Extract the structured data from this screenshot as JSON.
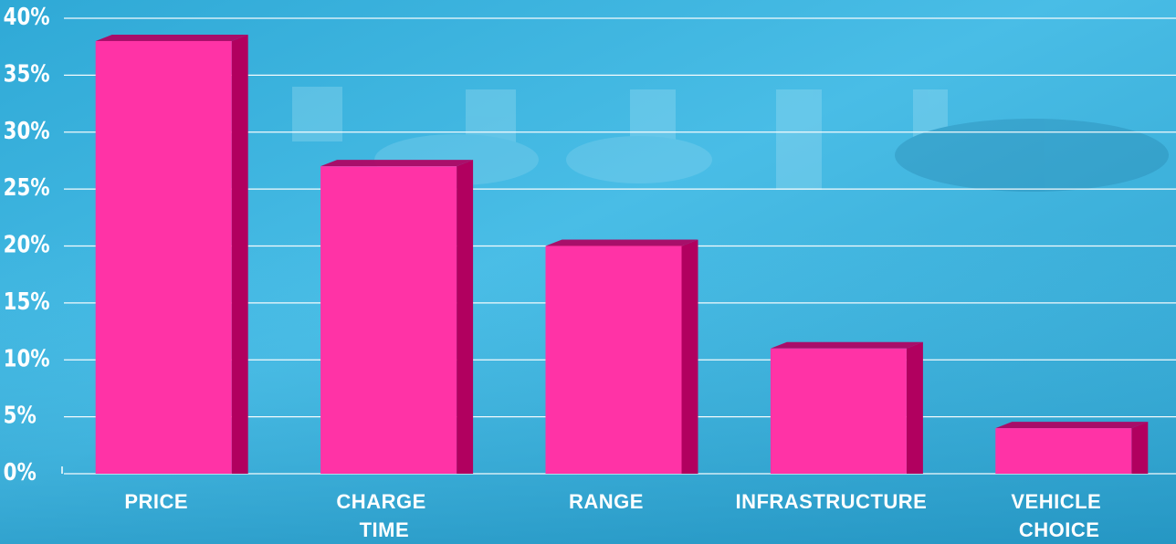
{
  "chart_data": {
    "type": "bar3d",
    "categories": [
      "PRICE",
      "CHARGE TIME",
      "RANGE",
      "INFRASTRUCTURE",
      "VEHICLE CHOICE"
    ],
    "values": [
      38,
      27,
      20,
      11,
      4
    ],
    "color": "#ff33a6",
    "side_color": "#b1005f",
    "ylim": [
      0,
      40
    ],
    "yticks": [
      {
        "value": 0,
        "label": "0%"
      },
      {
        "value": 5,
        "label": "5%"
      },
      {
        "value": 10,
        "label": "10%"
      },
      {
        "value": 15,
        "label": "15%"
      },
      {
        "value": 20,
        "label": "20%"
      },
      {
        "value": 25,
        "label": "25%"
      },
      {
        "value": 30,
        "label": "30%"
      },
      {
        "value": 35,
        "label": "35%"
      },
      {
        "value": 40,
        "label": "40%"
      }
    ],
    "grid": true
  }
}
